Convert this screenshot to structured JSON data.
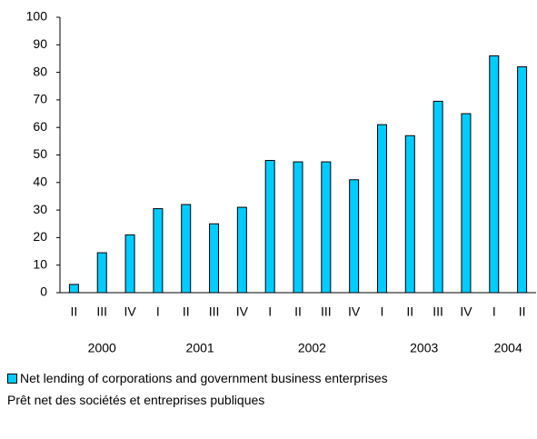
{
  "chart_data": {
    "type": "bar",
    "groups": [
      {
        "year": "2000",
        "quarters": [
          "II",
          "III",
          "IV"
        ]
      },
      {
        "year": "2001",
        "quarters": [
          "I",
          "II",
          "III",
          "IV"
        ]
      },
      {
        "year": "2002",
        "quarters": [
          "I",
          "II",
          "III",
          "IV"
        ]
      },
      {
        "year": "2003",
        "quarters": [
          "I",
          "II",
          "III",
          "IV"
        ]
      },
      {
        "year": "2004",
        "quarters": [
          "I",
          "II"
        ]
      }
    ],
    "series": [
      {
        "name": "Net lending of corporations and government business enterprises",
        "name_fr": "Prêt net des sociétés et entreprises publiques",
        "color": "#00ccff",
        "values": [
          3,
          14.5,
          21,
          30.5,
          32,
          25,
          31,
          48,
          47.5,
          47.5,
          41,
          61,
          57,
          69.5,
          65,
          86,
          82
        ]
      }
    ],
    "ylim": [
      0,
      100
    ],
    "yticks": [
      0,
      10,
      20,
      30,
      40,
      50,
      60,
      70,
      80,
      90,
      100
    ],
    "grid": false
  }
}
